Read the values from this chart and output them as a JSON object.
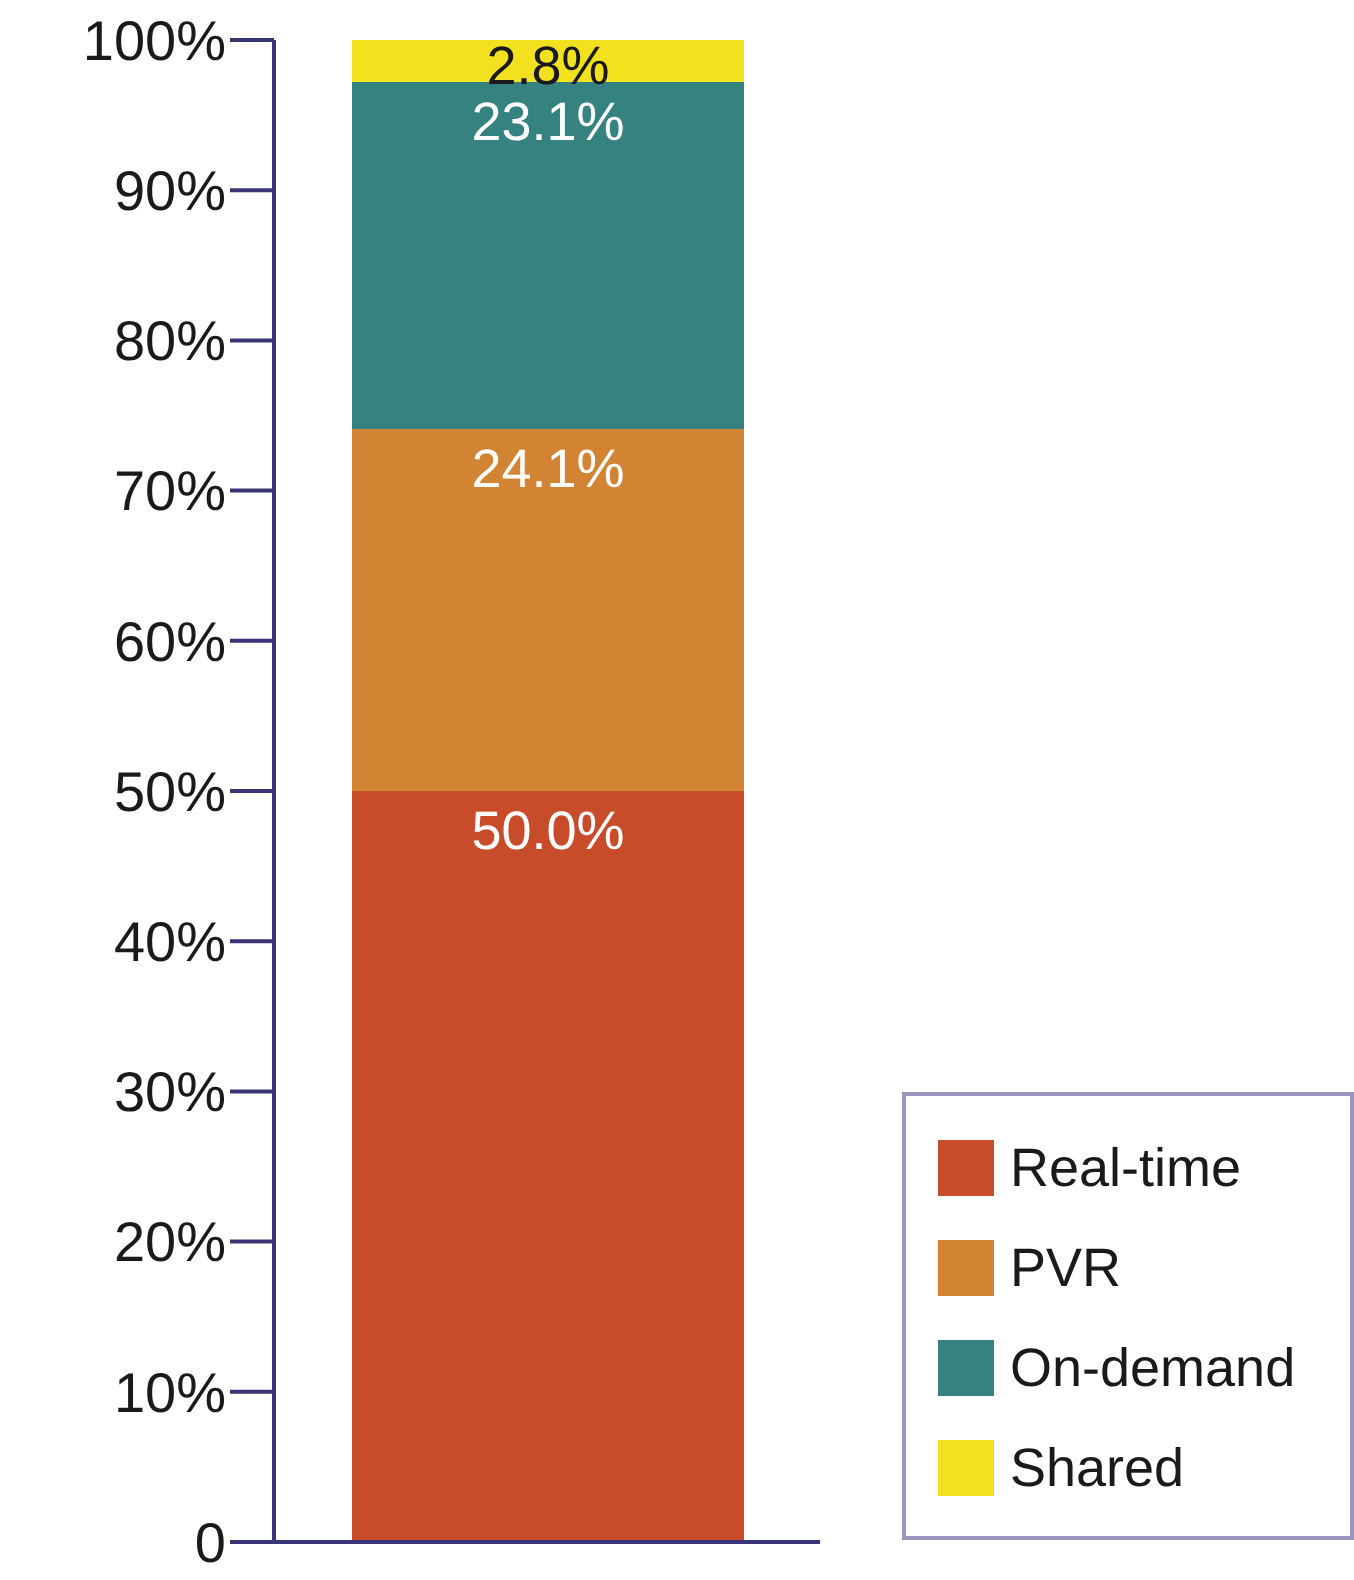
{
  "chart_data": {
    "type": "bar",
    "stacked": true,
    "categories": [
      null
    ],
    "series": [
      {
        "name": "Real-time",
        "color": "#c84b2a",
        "values": [
          50.0
        ],
        "value_labels": [
          "50.0%"
        ]
      },
      {
        "name": "PVR",
        "color": "#d38433",
        "values": [
          24.1
        ],
        "value_labels": [
          "24.1%"
        ]
      },
      {
        "name": "On-demand",
        "color": "#368280",
        "values": [
          23.1
        ],
        "value_labels": [
          "23.1%"
        ]
      },
      {
        "name": "Shared",
        "color": "#f2e11e",
        "values": [
          2.8
        ],
        "value_labels": [
          "2.8%"
        ]
      }
    ],
    "ylim": [
      0,
      100
    ],
    "yticks": [
      0,
      {
        "value": 10,
        "label": "10%"
      },
      {
        "value": 20,
        "label": "20%"
      },
      {
        "value": 30,
        "label": "30%"
      },
      {
        "value": 40,
        "label": "40%"
      },
      {
        "value": 50,
        "label": "50%"
      },
      {
        "value": 60,
        "label": "60%"
      },
      {
        "value": 70,
        "label": "70%"
      },
      {
        "value": 80,
        "label": "80%"
      },
      {
        "value": 90,
        "label": "90%"
      },
      {
        "value": 100,
        "label": "100%"
      }
    ],
    "legend": "bottom right",
    "grid": false
  }
}
